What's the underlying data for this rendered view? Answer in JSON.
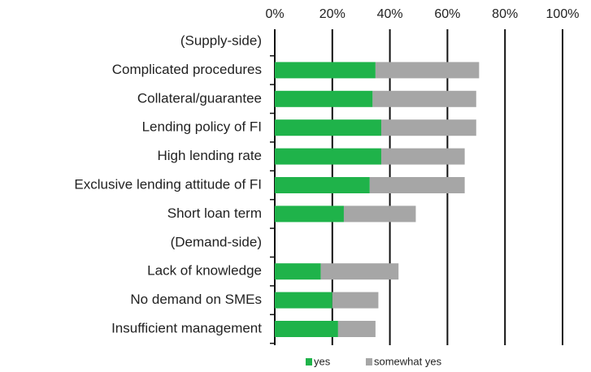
{
  "chart_data": {
    "type": "stacked_bar_horizontal",
    "categories": [
      "(Supply-side)",
      "Complicated procedures",
      "Collateral/guarantee",
      "Lending policy of FI",
      "High lending rate",
      "Exclusive lending attitude of FI",
      "Short loan term",
      "(Demand-side)",
      "Lack of knowledge",
      "No demand on SMEs",
      "Insufficient management"
    ],
    "series": [
      {
        "name": "yes",
        "color": "#1fb34a",
        "values": [
          null,
          35,
          34,
          37,
          37,
          33,
          24,
          null,
          16,
          20,
          22
        ]
      },
      {
        "name": "somewhat yes",
        "color": "#a6a6a6",
        "values": [
          null,
          36,
          36,
          33,
          29,
          33,
          25,
          null,
          27,
          16,
          13
        ]
      }
    ],
    "xlim": [
      0,
      100
    ],
    "xticks": [
      {
        "value": 0,
        "label": "0%"
      },
      {
        "value": 20,
        "label": "20%"
      },
      {
        "value": 40,
        "label": "40%"
      },
      {
        "value": 60,
        "label": "60%"
      },
      {
        "value": 80,
        "label": "80%"
      },
      {
        "value": 100,
        "label": "100%"
      }
    ],
    "grid": true,
    "legend": "bottom"
  }
}
